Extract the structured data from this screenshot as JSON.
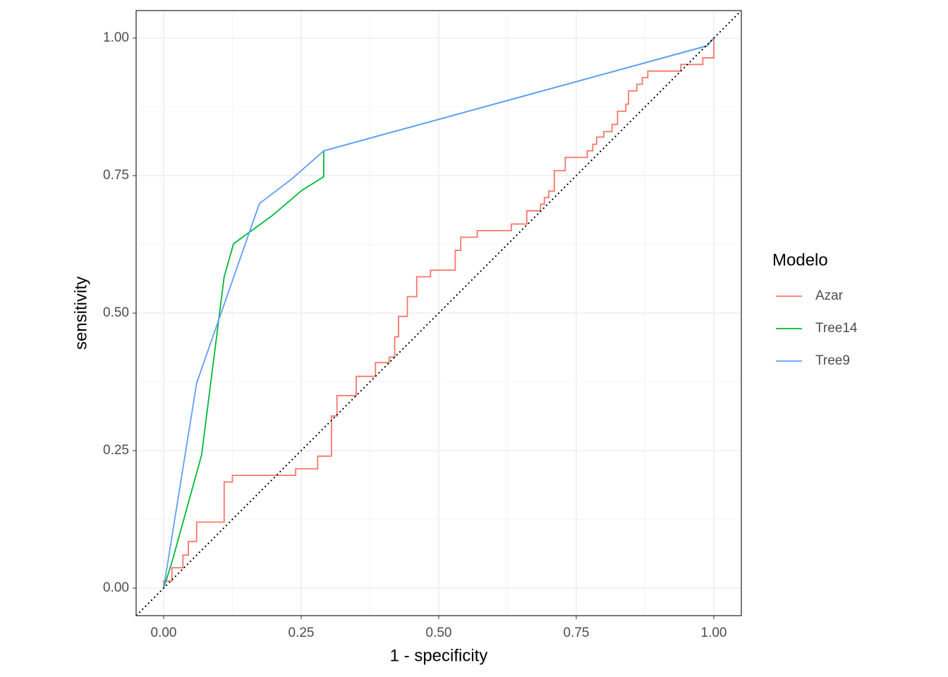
{
  "chart_data": {
    "type": "line",
    "x_label": "1 - specificity",
    "y_label": "sensitivity",
    "xlim": [
      -0.05,
      1.05
    ],
    "ylim": [
      -0.05,
      1.05
    ],
    "xticks": [
      {
        "value": 0,
        "label": "0.00"
      },
      {
        "value": 0.25,
        "label": "0.25"
      },
      {
        "value": 0.5,
        "label": "0.50"
      },
      {
        "value": 0.75,
        "label": "0.75"
      },
      {
        "value": 1,
        "label": "1.00"
      }
    ],
    "yticks": [
      {
        "value": 0,
        "label": "0.00"
      },
      {
        "value": 0.25,
        "label": "0.25"
      },
      {
        "value": 0.5,
        "label": "0.50"
      },
      {
        "value": 0.75,
        "label": "0.75"
      },
      {
        "value": 1,
        "label": "1.00"
      }
    ],
    "xminor": [
      0.125,
      0.375,
      0.625,
      0.875
    ],
    "yminor": [
      0.125,
      0.375,
      0.625,
      0.875
    ],
    "grid": true,
    "reference_line": true,
    "legend_title": "Modelo",
    "legend_position": "right",
    "series": [
      {
        "name": "Azar",
        "color": "#f8766d",
        "x": [
          0,
          0,
          0.015,
          0.015,
          0.035,
          0.035,
          0.045,
          0.045,
          0.06,
          0.06,
          0.11,
          0.11,
          0.125,
          0.125,
          0.24,
          0.24,
          0.28,
          0.28,
          0.305,
          0.305,
          0.315,
          0.315,
          0.35,
          0.35,
          0.385,
          0.385,
          0.41,
          0.41,
          0.42,
          0.42,
          0.427,
          0.427,
          0.443,
          0.443,
          0.46,
          0.46,
          0.485,
          0.485,
          0.53,
          0.53,
          0.54,
          0.54,
          0.57,
          0.57,
          0.632,
          0.632,
          0.66,
          0.66,
          0.685,
          0.685,
          0.692,
          0.692,
          0.7,
          0.7,
          0.71,
          0.71,
          0.73,
          0.73,
          0.77,
          0.77,
          0.78,
          0.78,
          0.787,
          0.787,
          0.8,
          0.8,
          0.815,
          0.815,
          0.825,
          0.825,
          0.84,
          0.84,
          0.845,
          0.845,
          0.86,
          0.86,
          0.87,
          0.87,
          0.88,
          0.88,
          0.94,
          0.94,
          0.98,
          0.98,
          1,
          1
        ],
        "values": [
          0,
          0.013,
          0.013,
          0.037,
          0.037,
          0.06,
          0.06,
          0.085,
          0.085,
          0.12,
          0.12,
          0.193,
          0.193,
          0.205,
          0.205,
          0.217,
          0.217,
          0.24,
          0.24,
          0.313,
          0.313,
          0.35,
          0.35,
          0.385,
          0.385,
          0.41,
          0.41,
          0.42,
          0.42,
          0.457,
          0.457,
          0.494,
          0.494,
          0.53,
          0.53,
          0.566,
          0.566,
          0.578,
          0.578,
          0.614,
          0.614,
          0.638,
          0.638,
          0.65,
          0.65,
          0.662,
          0.662,
          0.686,
          0.686,
          0.698,
          0.698,
          0.71,
          0.71,
          0.722,
          0.722,
          0.759,
          0.759,
          0.783,
          0.783,
          0.795,
          0.795,
          0.807,
          0.807,
          0.82,
          0.82,
          0.83,
          0.83,
          0.843,
          0.843,
          0.867,
          0.867,
          0.88,
          0.88,
          0.904,
          0.904,
          0.916,
          0.916,
          0.928,
          0.928,
          0.94,
          0.94,
          0.952,
          0.952,
          0.964,
          0.964,
          1
        ]
      },
      {
        "name": "Tree14",
        "color": "#00ba38",
        "x": [
          0,
          0.015,
          0.069,
          0.11,
          0.127,
          0.197,
          0.251,
          0.291,
          0.291,
          0.988,
          1
        ],
        "values": [
          0,
          0.047,
          0.242,
          0.566,
          0.626,
          0.677,
          0.723,
          0.748,
          0.795,
          0.986,
          1
        ]
      },
      {
        "name": "Tree9",
        "color": "#619cff",
        "x": [
          0,
          0.06,
          0.174,
          0.233,
          0.291,
          0.988,
          1
        ],
        "values": [
          0,
          0.373,
          0.699,
          0.744,
          0.795,
          0.986,
          1
        ]
      }
    ]
  }
}
